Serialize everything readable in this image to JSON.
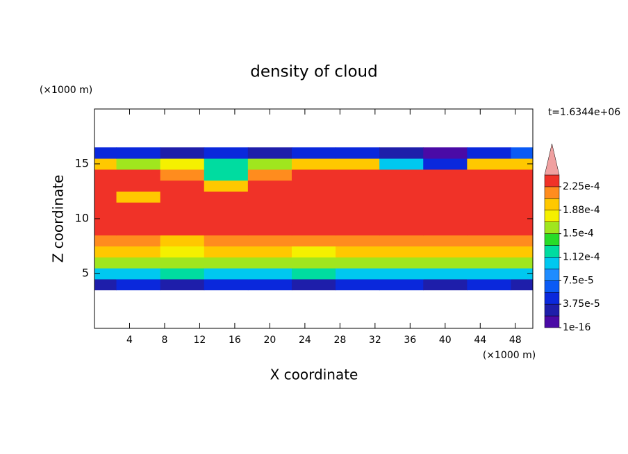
{
  "chart_data": {
    "type": "contour",
    "title": "density of cloud",
    "annotation": "t=1.6344e+06",
    "xlabel": "X coordinate",
    "ylabel": "Z coordinate",
    "x_unit": "(×1000 m)",
    "y_unit": "(×1000 m)",
    "xlim": [
      0,
      50
    ],
    "ylim": [
      0,
      20
    ],
    "xticks": [
      4,
      8,
      12,
      16,
      20,
      24,
      28,
      32,
      36,
      40,
      44,
      48
    ],
    "yticks": [
      5,
      10,
      15
    ],
    "x": [
      0,
      5,
      10,
      15,
      20,
      25,
      30,
      35,
      40,
      45,
      50
    ],
    "z": [
      3,
      4,
      5,
      6,
      7,
      8,
      9,
      10,
      11,
      12,
      13,
      14,
      15,
      16,
      17
    ],
    "values": [
      [
        null,
        null,
        null,
        null,
        null,
        null,
        null,
        null,
        null,
        null,
        null
      ],
      [
        3e-05,
        4e-05,
        3e-05,
        4e-05,
        4e-05,
        3e-05,
        4e-05,
        4e-05,
        3e-05,
        4e-05,
        3e-05
      ],
      [
        0.00011,
        0.00011,
        0.00012,
        0.0001,
        0.00011,
        0.00012,
        0.00011,
        0.00011,
        0.00011,
        0.0001,
        0.00011
      ],
      [
        0.00016,
        0.00016,
        0.00015,
        0.00016,
        0.00016,
        0.00015,
        0.00016,
        0.00016,
        0.00016,
        0.00016,
        0.00016
      ],
      [
        0.00019,
        0.00019,
        0.00018,
        0.00019,
        0.00019,
        0.00018,
        0.00019,
        0.00019,
        0.00019,
        0.00019,
        0.00019
      ],
      [
        0.00021,
        0.00021,
        0.0002,
        0.00021,
        0.00021,
        0.00021,
        0.00021,
        0.00021,
        0.00021,
        0.00021,
        0.00021
      ],
      [
        0.00023,
        0.00023,
        0.00023,
        0.00023,
        0.00023,
        0.00023,
        0.00023,
        0.00023,
        0.00023,
        0.00023,
        0.00023
      ],
      [
        0.000235,
        0.000235,
        0.000235,
        0.000235,
        0.000235,
        0.000235,
        0.000235,
        0.000235,
        0.000235,
        0.000235,
        0.000235
      ],
      [
        0.000235,
        0.000235,
        0.000235,
        0.000235,
        0.000235,
        0.000235,
        0.000235,
        0.000235,
        0.000235,
        0.000235,
        0.000235
      ],
      [
        0.00023,
        0.00019,
        0.000235,
        0.000235,
        0.000235,
        0.000235,
        0.000235,
        0.000235,
        0.000235,
        0.000235,
        0.00023
      ],
      [
        0.00023,
        0.00023,
        0.00023,
        0.0002,
        0.000235,
        0.000235,
        0.000235,
        0.000235,
        0.000235,
        0.00023,
        0.00023
      ],
      [
        0.00023,
        0.00023,
        0.00022,
        0.00013,
        0.00022,
        0.00023,
        0.00023,
        0.00023,
        0.00023,
        0.00023,
        0.00023
      ],
      [
        0.00019,
        0.00015,
        0.00017,
        0.00012,
        0.00015,
        0.0002,
        0.00019,
        0.00011,
        4e-05,
        0.0002,
        0.0002
      ],
      [
        5e-05,
        4e-05,
        2e-05,
        4e-05,
        3e-05,
        4e-05,
        4e-05,
        2e-05,
        1e-16,
        5e-05,
        6e-05
      ],
      [
        null,
        null,
        null,
        null,
        null,
        null,
        null,
        null,
        null,
        null,
        null
      ]
    ],
    "levels": [
      1e-16,
      1.875e-05,
      3.75e-05,
      5.625e-05,
      7.5e-05,
      9.375e-05,
      0.0001125,
      0.00013125,
      0.00015,
      0.00016875,
      0.0001875,
      0.00020625,
      0.000225,
      0.00024375
    ],
    "colors": [
      "#4a0aa6",
      "#1e1eaa",
      "#0a28dc",
      "#0a5af5",
      "#1e8cff",
      "#00c8f0",
      "#00dca0",
      "#28dc28",
      "#a0e61e",
      "#f5f000",
      "#ffc800",
      "#ff8c1e",
      "#f03228",
      "#f0a0a0"
    ],
    "clim": [
      1e-16,
      0.00024375
    ],
    "cticks": [
      1e-16,
      {
        "value": 3.75e-05,
        "label": "3.75e-5"
      },
      {
        "value": 7.5e-05,
        "label": "7.5e-5"
      },
      {
        "value": 0.0001125,
        "label": "1.12e-4"
      },
      {
        "value": 0.00015,
        "label": "1.5e-4"
      },
      {
        "value": 0.0001875,
        "label": "1.88e-4"
      },
      {
        "value": 0.000225,
        "label": "2.25e-4"
      }
    ]
  }
}
